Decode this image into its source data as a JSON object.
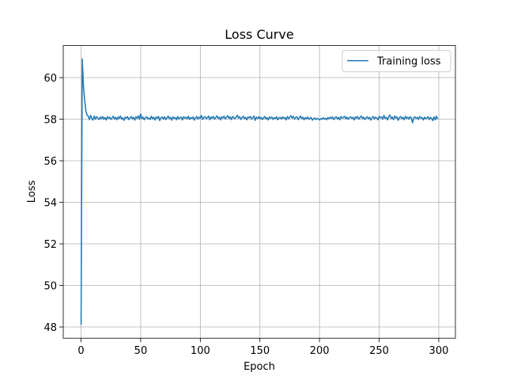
{
  "chart_data": {
    "type": "line",
    "title": "Loss Curve",
    "x_label": "Epoch",
    "y_label": "Loss",
    "x": [
      0,
      1,
      2,
      3,
      4,
      5,
      6,
      7,
      8,
      9,
      10,
      11,
      12,
      13,
      14,
      15,
      16,
      17,
      18,
      19,
      20,
      21,
      22,
      23,
      24,
      25,
      26,
      27,
      28,
      29,
      30,
      31,
      32,
      33,
      34,
      35,
      36,
      37,
      38,
      39,
      40,
      41,
      42,
      43,
      44,
      45,
      46,
      47,
      48,
      49,
      50,
      51,
      52,
      53,
      54,
      55,
      56,
      57,
      58,
      59,
      60,
      61,
      62,
      63,
      64,
      65,
      66,
      67,
      68,
      69,
      70,
      71,
      72,
      73,
      74,
      75,
      76,
      77,
      78,
      79,
      80,
      81,
      82,
      83,
      84,
      85,
      86,
      87,
      88,
      89,
      90,
      91,
      92,
      93,
      94,
      95,
      96,
      97,
      98,
      99,
      100,
      101,
      102,
      103,
      104,
      105,
      106,
      107,
      108,
      109,
      110,
      111,
      112,
      113,
      114,
      115,
      116,
      117,
      118,
      119,
      120,
      121,
      122,
      123,
      124,
      125,
      126,
      127,
      128,
      129,
      130,
      131,
      132,
      133,
      134,
      135,
      136,
      137,
      138,
      139,
      140,
      141,
      142,
      143,
      144,
      145,
      146,
      147,
      148,
      149,
      150,
      151,
      152,
      153,
      154,
      155,
      156,
      157,
      158,
      159,
      160,
      161,
      162,
      163,
      164,
      165,
      166,
      167,
      168,
      169,
      170,
      171,
      172,
      173,
      174,
      175,
      176,
      177,
      178,
      179,
      180,
      181,
      182,
      183,
      184,
      185,
      186,
      187,
      188,
      189,
      190,
      191,
      192,
      193,
      194,
      195,
      196,
      197,
      198,
      199,
      200,
      201,
      202,
      203,
      204,
      205,
      206,
      207,
      208,
      209,
      210,
      211,
      212,
      213,
      214,
      215,
      216,
      217,
      218,
      219,
      220,
      221,
      222,
      223,
      224,
      225,
      226,
      227,
      228,
      229,
      230,
      231,
      232,
      233,
      234,
      235,
      236,
      237,
      238,
      239,
      240,
      241,
      242,
      243,
      244,
      245,
      246,
      247,
      248,
      249,
      250,
      251,
      252,
      253,
      254,
      255,
      256,
      257,
      258,
      259,
      260,
      261,
      262,
      263,
      264,
      265,
      266,
      267,
      268,
      269,
      270,
      271,
      272,
      273,
      274,
      275,
      276,
      277,
      278,
      279,
      280,
      281,
      282,
      283,
      284,
      285,
      286,
      287,
      288,
      289,
      290,
      291,
      292,
      293,
      294,
      295,
      296,
      297,
      298,
      299
    ],
    "series": [
      {
        "name": "Training loss",
        "color": "#1f77b4",
        "values": [
          48.1,
          60.9,
          59.6,
          58.9,
          58.4,
          58.2,
          58.15,
          57.98,
          58.18,
          58.05,
          57.95,
          58.15,
          58.0,
          58.12,
          58.05,
          57.98,
          58.1,
          58.02,
          58.13,
          58.0,
          58.08,
          57.96,
          58.12,
          58.04,
          58.1,
          57.99,
          58.06,
          58.14,
          58.01,
          58.09,
          57.97,
          58.11,
          58.03,
          58.15,
          58.0,
          58.07,
          57.94,
          58.1,
          58.05,
          58.12,
          57.98,
          58.06,
          58.13,
          58.02,
          58.09,
          57.95,
          58.11,
          58.04,
          58.16,
          58.0,
          58.25,
          58.03,
          58.1,
          57.97,
          58.08,
          58.12,
          58.01,
          58.06,
          57.99,
          58.14,
          58.02,
          58.09,
          57.96,
          58.11,
          58.05,
          58.13,
          57.93,
          58.07,
          58.1,
          58.0,
          58.12,
          57.98,
          58.06,
          58.15,
          58.03,
          58.09,
          57.95,
          58.11,
          58.04,
          58.08,
          57.97,
          58.13,
          58.01,
          58.07,
          58.1,
          57.96,
          58.12,
          58.05,
          58.09,
          58.02,
          58.14,
          57.99,
          58.08,
          58.03,
          58.11,
          57.95,
          58.06,
          58.13,
          58.0,
          58.1,
          58.04,
          58.18,
          57.98,
          58.09,
          58.12,
          58.02,
          58.07,
          58.15,
          57.97,
          58.11,
          58.05,
          58.13,
          58.0,
          58.08,
          58.16,
          58.03,
          58.1,
          57.96,
          58.12,
          58.06,
          58.14,
          58.01,
          58.09,
          58.17,
          58.04,
          58.11,
          57.98,
          58.13,
          58.07,
          58.02,
          58.1,
          58.19,
          58.05,
          58.12,
          57.99,
          58.08,
          58.14,
          58.03,
          58.09,
          57.97,
          58.11,
          58.06,
          58.13,
          58.0,
          58.07,
          58.15,
          57.94,
          58.1,
          58.04,
          58.12,
          58.02,
          58.09,
          57.98,
          58.06,
          58.13,
          58.01,
          58.08,
          57.96,
          58.11,
          58.05,
          58.1,
          57.99,
          58.07,
          58.03,
          58.12,
          57.97,
          58.06,
          58.09,
          58.01,
          58.11,
          58.04,
          58.08,
          57.96,
          58.13,
          58.02,
          58.1,
          58.17,
          58.05,
          58.14,
          58.0,
          58.09,
          58.12,
          57.98,
          58.06,
          58.15,
          58.03,
          58.1,
          57.97,
          58.07,
          58.02,
          58.11,
          57.99,
          58.05,
          58.08,
          57.95,
          58.02,
          58.06,
          57.98,
          58.04,
          58.01,
          57.96,
          58.03,
          57.99,
          58.07,
          58.0,
          58.05,
          57.97,
          58.08,
          58.02,
          58.1,
          58.04,
          58.11,
          57.98,
          58.06,
          58.12,
          58.01,
          58.09,
          57.97,
          58.13,
          58.05,
          58.08,
          58.14,
          58.02,
          58.1,
          57.99,
          58.07,
          58.12,
          58.04,
          58.09,
          57.96,
          58.11,
          58.05,
          58.13,
          58.0,
          58.08,
          58.15,
          58.03,
          58.1,
          57.98,
          58.06,
          58.12,
          58.02,
          58.09,
          57.95,
          58.07,
          58.13,
          58.01,
          58.1,
          58.05,
          57.97,
          58.14,
          58.06,
          58.11,
          58.0,
          58.18,
          58.04,
          58.09,
          57.96,
          58.12,
          58.2,
          58.03,
          58.1,
          57.98,
          58.16,
          58.05,
          58.11,
          57.94,
          58.08,
          58.13,
          58.02,
          58.09,
          57.97,
          58.14,
          58.04,
          58.1,
          58.0,
          58.12,
          58.06,
          57.82,
          58.07,
          58.11,
          58.03,
          58.09,
          57.99,
          58.13,
          58.05,
          58.08,
          57.96,
          58.1,
          58.02,
          58.06,
          58.12,
          57.98,
          58.09,
          58.04,
          57.93,
          58.11,
          57.97,
          58.15,
          58.0
        ]
      }
    ],
    "xlim": [
      -14.95,
      313.95
    ],
    "ylim": [
      47.46,
      61.54
    ],
    "xticks": [
      0,
      50,
      100,
      150,
      200,
      250,
      300
    ],
    "yticks": [
      48,
      50,
      52,
      54,
      56,
      58,
      60
    ],
    "grid": true,
    "legend": "upper right"
  }
}
